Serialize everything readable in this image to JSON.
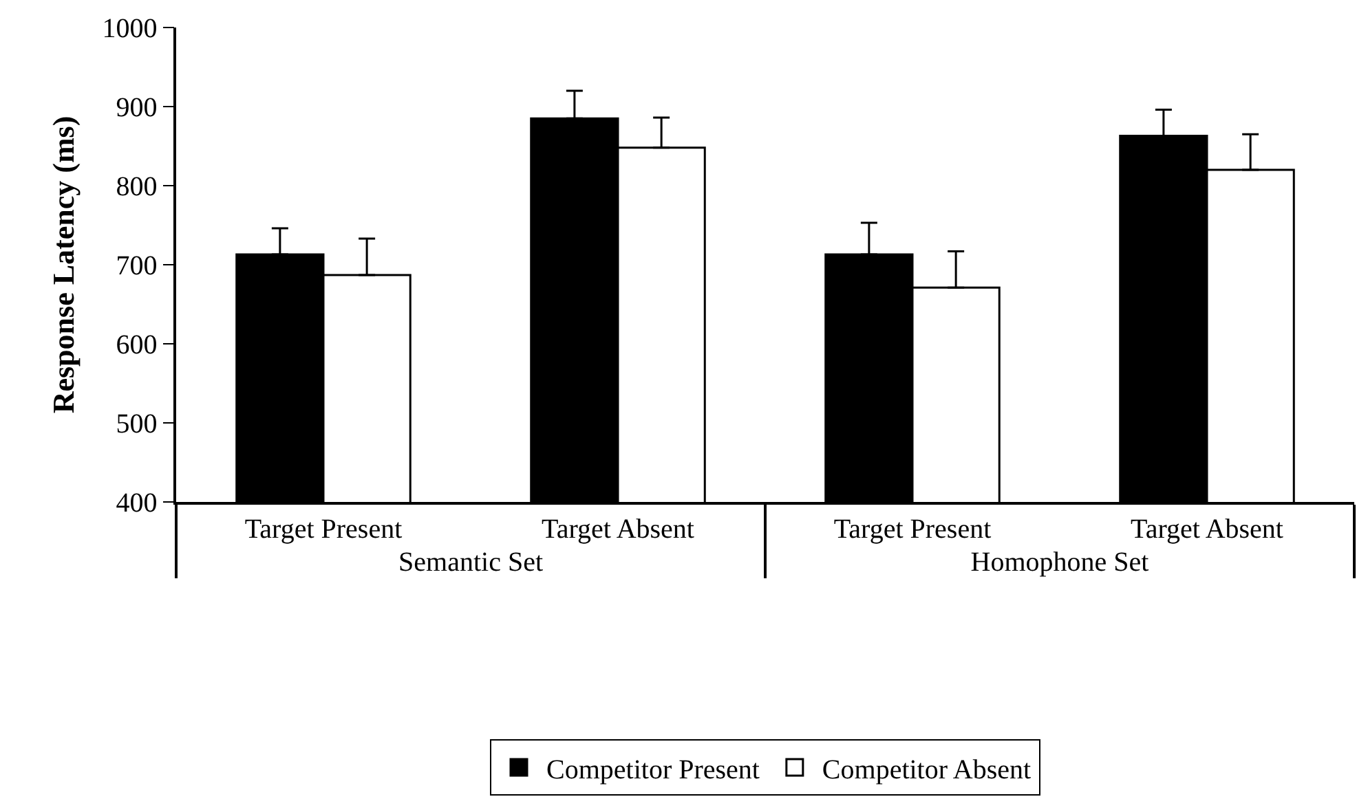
{
  "chart_data": {
    "type": "bar",
    "ylabel": "Response Latency (ms)",
    "categories": [
      "Target Present",
      "Target Absent",
      "Target Present",
      "Target Absent"
    ],
    "annotations": [
      "Semantic Set",
      "Homophone Set"
    ],
    "series": [
      {
        "name": "Competitor Present",
        "color": "#000000",
        "values": [
          713,
          885,
          713,
          863
        ],
        "errors": [
          [
            713,
            746
          ],
          [
            885,
            920
          ],
          [
            713,
            753
          ],
          [
            863,
            896
          ]
        ]
      },
      {
        "name": "Competitor Absent",
        "color": "#ffffff",
        "values": [
          687,
          848,
          671,
          820
        ],
        "errors": [
          [
            687,
            733
          ],
          [
            848,
            886
          ],
          [
            671,
            717
          ],
          [
            820,
            865
          ]
        ]
      }
    ],
    "ylim": [
      400,
      1000
    ],
    "yticks": [
      400,
      500,
      600,
      700,
      800,
      900,
      1000
    ],
    "grid": false,
    "legend": "bottom"
  }
}
